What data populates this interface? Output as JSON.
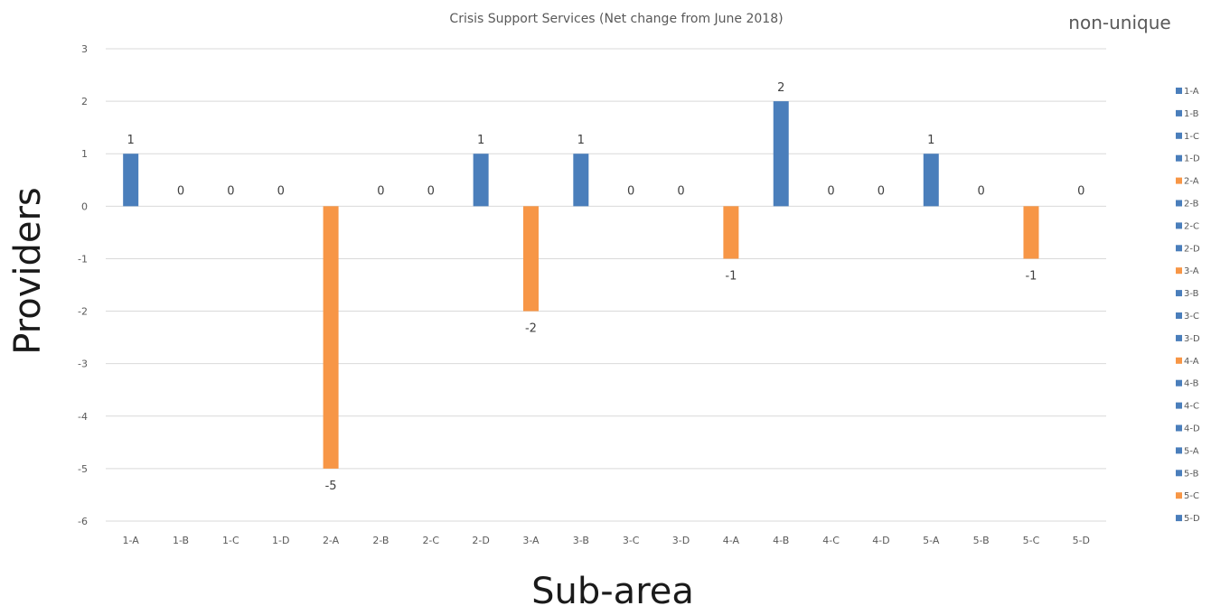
{
  "corner_label": "non-unique",
  "chart_data": {
    "type": "bar",
    "title": "Crisis Support Services (Net change from June 2018)",
    "xlabel": "Sub-area",
    "ylabel": "Providers",
    "categories": [
      "1-A",
      "1-B",
      "1-C",
      "1-D",
      "2-A",
      "2-B",
      "2-C",
      "2-D",
      "3-A",
      "3-B",
      "3-C",
      "3-D",
      "4-A",
      "4-B",
      "4-C",
      "4-D",
      "5-A",
      "5-B",
      "5-C",
      "5-D"
    ],
    "values": [
      1,
      0,
      0,
      0,
      -5,
      0,
      0,
      1,
      -2,
      1,
      0,
      0,
      -1,
      2,
      0,
      0,
      1,
      0,
      -1,
      0
    ],
    "data_labels": [
      "1",
      "0",
      "0",
      "0",
      "-5",
      "0",
      "0",
      "1",
      "-2",
      "1",
      "0",
      "0",
      "-1",
      "2",
      "0",
      "0",
      "1",
      "0",
      "-1",
      "0"
    ],
    "yticks": [
      3,
      2,
      1,
      0,
      -1,
      -2,
      -3,
      -4,
      -5,
      -6
    ],
    "ylim": [
      -6,
      3
    ],
    "grid": true,
    "legend_position": "right",
    "legend": [
      "1-A",
      "1-B",
      "1-C",
      "1-D",
      "2-A",
      "2-B",
      "2-C",
      "2-D",
      "3-A",
      "3-B",
      "3-C",
      "3-D",
      "4-A",
      "4-B",
      "4-C",
      "4-D",
      "5-A",
      "5-B",
      "5-C",
      "5-D"
    ],
    "colors": {
      "positive": "#4a7ebb",
      "negative": "#f79646"
    }
  }
}
